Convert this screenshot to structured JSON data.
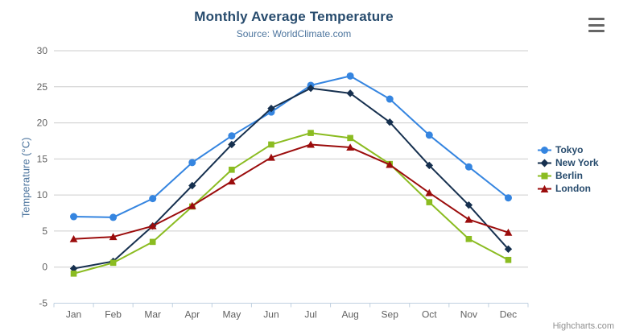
{
  "theme": {
    "title_color": "#274b6d",
    "subtitle_color": "#4d759e",
    "legend_color": "#274b6d",
    "axis_label_color": "#606060",
    "grid_color": "#cccccc",
    "axis_line_color": "#c0d0e0"
  },
  "export_menu": {
    "icon": "hamburger-icon"
  },
  "credits": {
    "label": "Highcharts.com"
  },
  "chart_data": {
    "type": "line",
    "title": "Monthly Average Temperature",
    "subtitle": "Source: WorldClimate.com",
    "xlabel": "",
    "ylabel": "Temperature (°C)",
    "ylim": [
      -5,
      30
    ],
    "yticks": [
      -5,
      0,
      5,
      10,
      15,
      20,
      25,
      30
    ],
    "grid": true,
    "legend_position": "right",
    "categories": [
      "Jan",
      "Feb",
      "Mar",
      "Apr",
      "May",
      "Jun",
      "Jul",
      "Aug",
      "Sep",
      "Oct",
      "Nov",
      "Dec"
    ],
    "series": [
      {
        "name": "Tokyo",
        "color": "#3585e0",
        "marker": "circle",
        "values": [
          7.0,
          6.9,
          9.5,
          14.5,
          18.2,
          21.5,
          25.2,
          26.5,
          23.3,
          18.3,
          13.9,
          9.6
        ]
      },
      {
        "name": "New York",
        "color": "#16304f",
        "marker": "diamond",
        "values": [
          -0.2,
          0.8,
          5.7,
          11.3,
          17.0,
          22.0,
          24.8,
          24.1,
          20.1,
          14.1,
          8.6,
          2.5
        ]
      },
      {
        "name": "Berlin",
        "color": "#8bbc21",
        "marker": "square",
        "values": [
          -0.9,
          0.6,
          3.5,
          8.4,
          13.5,
          17.0,
          18.6,
          17.9,
          14.3,
          9.0,
          3.9,
          1.0
        ]
      },
      {
        "name": "London",
        "color": "#9b0c0c",
        "marker": "triangle",
        "values": [
          3.9,
          4.2,
          5.7,
          8.5,
          11.9,
          15.2,
          17.0,
          16.6,
          14.2,
          10.3,
          6.6,
          4.8
        ]
      }
    ]
  }
}
